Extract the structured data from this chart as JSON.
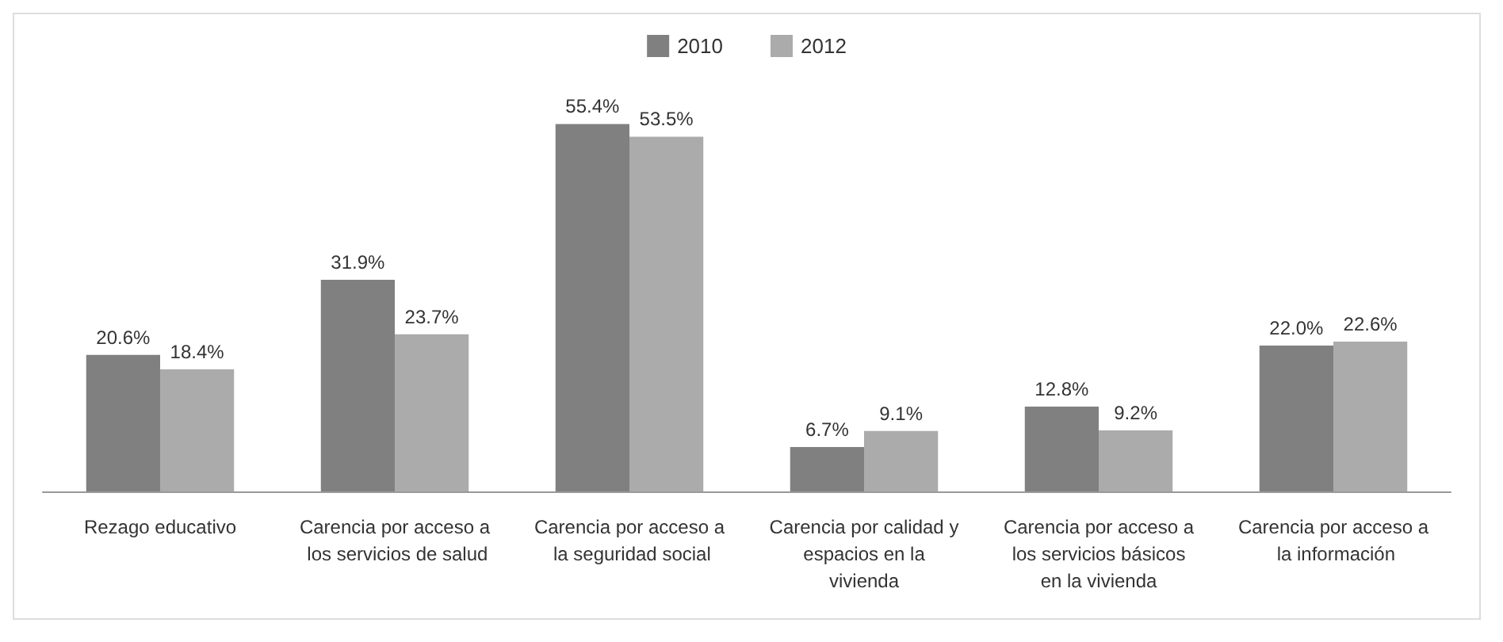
{
  "chart_data": {
    "type": "bar",
    "categories": [
      "Rezago educativo",
      "Carencia por acceso a los servicios de salud",
      "Carencia por acceso a la seguridad social",
      "Carencia por calidad y espacios en la vivienda",
      "Carencia por acceso a los servicios básicos en la vivienda",
      "Carencia por acceso a la información"
    ],
    "series": [
      {
        "name": "2010",
        "color": "#808080",
        "values": [
          20.6,
          31.9,
          55.4,
          6.7,
          12.8,
          22.0
        ],
        "value_labels": [
          "20.6%",
          "31.9%",
          "55.4%",
          "6.7%",
          "12.8%",
          "22.0%"
        ]
      },
      {
        "name": "2012",
        "color": "#ababab",
        "values": [
          18.4,
          23.7,
          53.5,
          9.1,
          9.2,
          22.6
        ],
        "value_labels": [
          "18.4%",
          "23.7%",
          "53.5%",
          "9.1%",
          "9.2%",
          "22.6%"
        ]
      }
    ],
    "legend": "top"
  }
}
